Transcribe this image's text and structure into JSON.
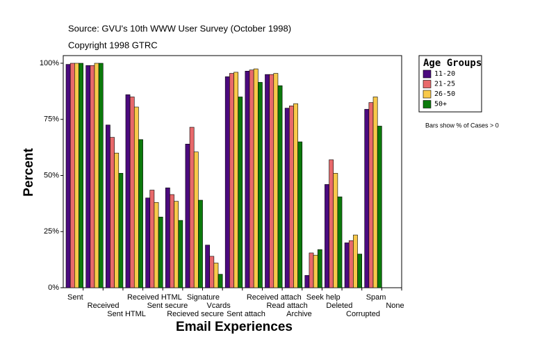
{
  "chart_data": {
    "type": "bar",
    "title": "Source: GVU's 10th WWW User Survey (October 1998)",
    "subtitle": "Copyright 1998 GTRC",
    "x_label": "Email Experiences",
    "y_label": "Percent",
    "note": "Bars show % of Cases > 0",
    "legend_title": "Age Groups",
    "legend_position": "right",
    "categories": [
      "Sent",
      "Received",
      "Sent HTML",
      "Received HTML",
      "Sent secure",
      "Recieved secure",
      "Signature",
      "Vcards",
      "Sent attach",
      "Received attach",
      "Read attach",
      "Archive",
      "Seek help",
      "Deleted",
      "Corrupted",
      "Spam",
      "None"
    ],
    "series": [
      {
        "name": "11-20",
        "color": "#4b0a7e",
        "values": [
          99.5,
          99,
          72.5,
          86,
          40,
          44.5,
          64,
          19,
          94,
          96.5,
          95,
          80,
          5.5,
          46,
          20,
          79.5,
          null
        ]
      },
      {
        "name": "21-25",
        "color": "#e8696b",
        "values": [
          100,
          99,
          67,
          85,
          43.5,
          41.5,
          71.5,
          14,
          95.5,
          97,
          95,
          81,
          15.5,
          57,
          21,
          82.5,
          null
        ]
      },
      {
        "name": "26-50",
        "color": "#f8c94a",
        "values": [
          100,
          100,
          60,
          80.5,
          38,
          38.5,
          60.5,
          11,
          96,
          97.5,
          95.5,
          82,
          14.5,
          51,
          23.5,
          85,
          null
        ]
      },
      {
        "name": "50+",
        "color": "#0b7a0b",
        "values": [
          100,
          100,
          51,
          66,
          31.5,
          30,
          39,
          6,
          85,
          91.5,
          90,
          65,
          17,
          40.5,
          15,
          72,
          null
        ]
      }
    ],
    "ylim": [
      0,
      100
    ],
    "yticks": [
      {
        "value": 0,
        "label": "0%"
      },
      {
        "value": 25,
        "label": "25%"
      },
      {
        "value": 50,
        "label": "50%"
      },
      {
        "value": 75,
        "label": "75%"
      },
      {
        "value": 100,
        "label": "100%"
      }
    ]
  }
}
